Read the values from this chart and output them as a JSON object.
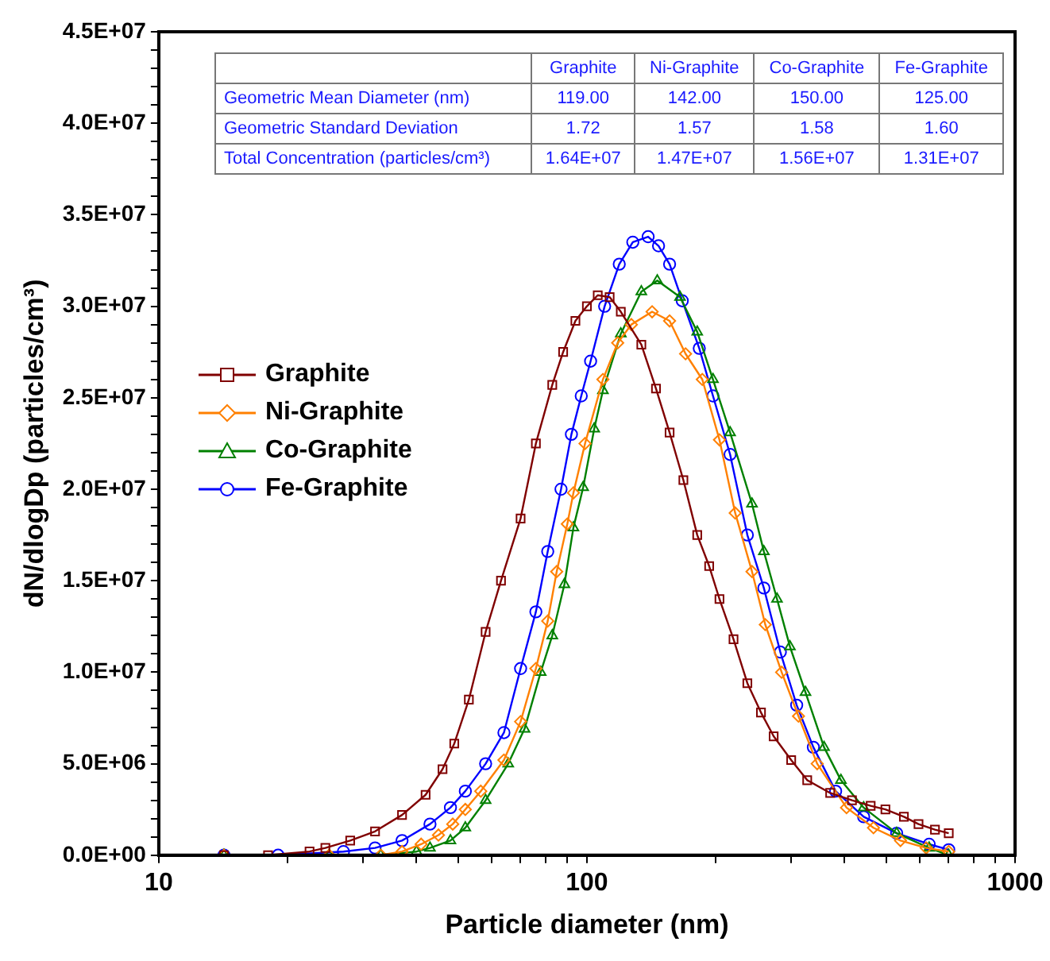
{
  "chart_data": {
    "type": "line",
    "xlabel": "Particle diameter (nm)",
    "ylabel": "dN/dlogDp (particles/cm³)",
    "log": "x",
    "grid": false,
    "legend": "left",
    "line_style": "solid",
    "xlim": [
      10,
      1000
    ],
    "xticks": [
      10,
      {
        "value": 20,
        "label": null
      },
      {
        "value": 30,
        "label": null
      },
      {
        "value": 40,
        "label": null
      },
      {
        "value": 50,
        "label": null
      },
      {
        "value": 60,
        "label": null
      },
      {
        "value": 70,
        "label": null
      },
      {
        "value": 80,
        "label": null
      },
      {
        "value": 90,
        "label": null
      },
      100,
      {
        "value": 200,
        "label": null
      },
      {
        "value": 300,
        "label": null
      },
      {
        "value": 400,
        "label": null
      },
      {
        "value": 500,
        "label": null
      },
      {
        "value": 600,
        "label": null
      },
      {
        "value": 700,
        "label": null
      },
      {
        "value": 800,
        "label": null
      },
      {
        "value": 900,
        "label": null
      },
      1000
    ],
    "ylim": [
      0,
      45000000
    ],
    "yticks": [
      {
        "value": 0,
        "label": "0.0E+00"
      },
      {
        "value": 1000000.0,
        "label": null
      },
      {
        "value": 2000000.0,
        "label": null
      },
      {
        "value": 3000000.0,
        "label": null
      },
      {
        "value": 4000000.0,
        "label": null
      },
      {
        "value": 5000000.0,
        "label": "5.0E+06"
      },
      {
        "value": 6000000.0,
        "label": null
      },
      {
        "value": 7000000.0,
        "label": null
      },
      {
        "value": 8000000.0,
        "label": null
      },
      {
        "value": 9000000.0,
        "label": null
      },
      {
        "value": 10000000.0,
        "label": "1.0E+07"
      },
      {
        "value": 11000000.0,
        "label": null
      },
      {
        "value": 12000000.0,
        "label": null
      },
      {
        "value": 13000000.0,
        "label": null
      },
      {
        "value": 14000000.0,
        "label": null
      },
      {
        "value": 15000000.0,
        "label": "1.5E+07"
      },
      {
        "value": 16000000.0,
        "label": null
      },
      {
        "value": 17000000.0,
        "label": null
      },
      {
        "value": 18000000.0,
        "label": null
      },
      {
        "value": 19000000.0,
        "label": null
      },
      {
        "value": 20000000.0,
        "label": "2.0E+07"
      },
      {
        "value": 21000000.0,
        "label": null
      },
      {
        "value": 22000000.0,
        "label": null
      },
      {
        "value": 23000000.0,
        "label": null
      },
      {
        "value": 24000000.0,
        "label": null
      },
      {
        "value": 25000000.0,
        "label": "2.5E+07"
      },
      {
        "value": 26000000.0,
        "label": null
      },
      {
        "value": 27000000.0,
        "label": null
      },
      {
        "value": 28000000.0,
        "label": null
      },
      {
        "value": 29000000.0,
        "label": null
      },
      {
        "value": 30000000.0,
        "label": "3.0E+07"
      },
      {
        "value": 31000000.0,
        "label": null
      },
      {
        "value": 32000000.0,
        "label": null
      },
      {
        "value": 33000000.0,
        "label": null
      },
      {
        "value": 34000000.0,
        "label": null
      },
      {
        "value": 35000000.0,
        "label": "3.5E+07"
      },
      {
        "value": 36000000.0,
        "label": null
      },
      {
        "value": 37000000.0,
        "label": null
      },
      {
        "value": 38000000.0,
        "label": null
      },
      {
        "value": 39000000.0,
        "label": null
      },
      {
        "value": 40000000.0,
        "label": "4.0E+07"
      },
      {
        "value": 41000000.0,
        "label": null
      },
      {
        "value": 42000000.0,
        "label": null
      },
      {
        "value": 43000000.0,
        "label": null
      },
      {
        "value": 44000000.0,
        "label": null
      },
      {
        "value": 45000000.0,
        "label": "4.5E+07"
      }
    ],
    "annotations": [
      "Geometric Mean Diameter (nm)",
      "119.00",
      "142.00",
      "150.00",
      "125.00",
      "Geometric Standard Deviation",
      "1.72",
      "1.57",
      "1.58",
      "1.60",
      "Total Concentration (particles/cm³)",
      "1.64E+07",
      "1.47E+07",
      "1.56E+07",
      "1.31E+07"
    ],
    "series": [
      {
        "name": "Graphite",
        "color": "#800000",
        "marker": "square",
        "x": [
          14.2,
          18,
          22.5,
          24.5,
          28,
          32,
          37,
          42,
          46,
          49,
          53,
          58,
          63,
          70,
          76,
          83,
          88,
          94,
          100,
          106,
          113,
          120,
          134,
          145,
          156,
          168,
          181,
          193,
          204,
          220,
          237,
          255,
          273,
          300,
          327,
          370,
          416,
          460,
          498,
          550,
          595,
          650,
          700
        ],
        "values": [
          0,
          0,
          200000.0,
          400000.0,
          800000.0,
          1300000.0,
          2200000.0,
          3300000.0,
          4700000.0,
          6100000.0,
          8500000.0,
          12200000.0,
          15000000.0,
          18400000.0,
          22500000.0,
          25700000.0,
          27500000.0,
          29200000.0,
          30000000.0,
          30600000.0,
          30500000.0,
          29700000.0,
          27900000.0,
          25500000.0,
          23100000.0,
          20500000.0,
          17500000.0,
          15800000.0,
          14000000.0,
          11800000.0,
          9400000.0,
          7800000.0,
          6500000.0,
          5200000.0,
          4100000.0,
          3400000.0,
          3000000.0,
          2700000.0,
          2500000.0,
          2100000.0,
          1700000.0,
          1400000.0,
          1200000.0
        ]
      },
      {
        "name": "Ni-Graphite",
        "color": "#ff8000",
        "marker": "diamond",
        "x": [
          14.2,
          25,
          33,
          37,
          41,
          45,
          48.6,
          52,
          56.5,
          64,
          70,
          76,
          81,
          85,
          90,
          93,
          99,
          109,
          118,
          127,
          142,
          156,
          170,
          186,
          204,
          222,
          243,
          261,
          285,
          312,
          345,
          404,
          467,
          540,
          620,
          700
        ],
        "values": [
          0,
          0,
          0,
          200000.0,
          600000.0,
          1100000.0,
          1700000.0,
          2500000.0,
          3500000.0,
          5200000.0,
          7300000.0,
          10200000.0,
          12800000.0,
          15500000.0,
          18100000.0,
          19800000.0,
          22500000.0,
          26000000.0,
          28000000.0,
          29000000.0,
          29700000.0,
          29200000.0,
          27400000.0,
          26000000.0,
          22700000.0,
          18700000.0,
          15500000.0,
          12600000.0,
          10000000.0,
          7600000.0,
          5000000.0,
          2600000.0,
          1500000.0,
          800000.0,
          400000.0,
          200000.0
        ]
      },
      {
        "name": "Co-Graphite",
        "color": "#008000",
        "marker": "triangle",
        "x": [
          14.2,
          25,
          33,
          40,
          43,
          48,
          52,
          58,
          65.5,
          71.5,
          78,
          83,
          88.6,
          93,
          98,
          104,
          109,
          120,
          134,
          146,
          165,
          181,
          197,
          216,
          243,
          259,
          278,
          298,
          324,
          358,
          392,
          443,
          529,
          630,
          700
        ],
        "values": [
          0,
          0,
          0,
          200000.0,
          400000.0,
          800000.0,
          1500000.0,
          3000000.0,
          5000000.0,
          6900000.0,
          10000000.0,
          12000000.0,
          14800000.0,
          17900000.0,
          20100000.0,
          23300000.0,
          25400000.0,
          28500000.0,
          30800000.0,
          31400000.0,
          30500000.0,
          28600000.0,
          26000000.0,
          23100000.0,
          19200000.0,
          16600000.0,
          14000000.0,
          11400000.0,
          8900000.0,
          5900000.0,
          4100000.0,
          2600000.0,
          1200000.0,
          400000.0,
          0
        ]
      },
      {
        "name": "Fe-Graphite",
        "color": "#0000ff",
        "marker": "circle",
        "x": [
          14.2,
          19,
          27,
          32,
          37,
          43,
          48,
          52,
          58,
          64,
          70,
          76,
          81,
          87,
          92,
          97,
          102,
          110,
          119,
          128,
          139,
          147,
          156,
          167,
          183,
          197,
          216,
          237,
          259,
          283,
          309,
          338,
          381,
          443,
          529,
          630,
          700
        ],
        "values": [
          0,
          0,
          200000.0,
          400000.0,
          800000.0,
          1700000.0,
          2600000.0,
          3500000.0,
          5000000.0,
          6700000.0,
          10200000.0,
          13300000.0,
          16600000.0,
          20000000.0,
          23000000.0,
          25100000.0,
          27000000.0,
          30000000.0,
          32300000.0,
          33500000.0,
          33800000.0,
          33300000.0,
          32300000.0,
          30300000.0,
          27700000.0,
          25100000.0,
          21900000.0,
          17500000.0,
          14600000.0,
          11100000.0,
          8200000.0,
          5900000.0,
          3500000.0,
          2100000.0,
          1200000.0,
          600000.0,
          300000.0
        ]
      }
    ]
  }
}
